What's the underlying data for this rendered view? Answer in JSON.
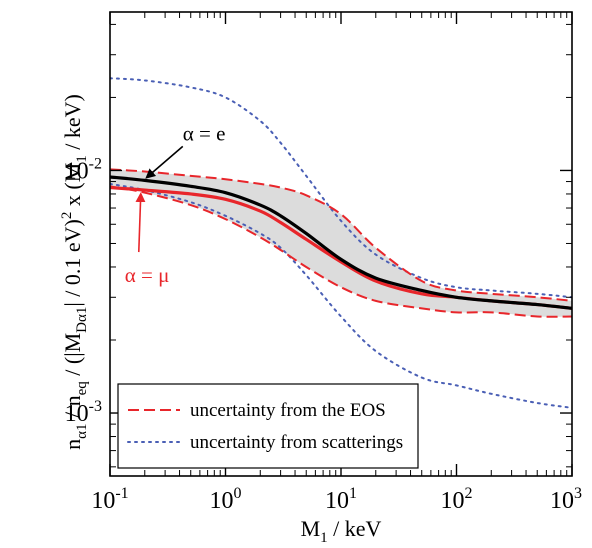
{
  "chart_data": {
    "type": "line",
    "x_scale": "log",
    "y_scale": "log",
    "xlim": [
      0.1,
      1000
    ],
    "ylim": [
      0.00055,
      0.045
    ],
    "xlabel": "M_1 / keV",
    "ylabel": "n_α1 / n_eq / (|M_Dα1| / 0.1 eV)^2 x (M_1 / keV)",
    "x_ticks": [
      {
        "value": 0.1,
        "base": "10",
        "exp": "-1"
      },
      {
        "value": 1,
        "base": "10",
        "exp": "0"
      },
      {
        "value": 10,
        "base": "10",
        "exp": "1"
      },
      {
        "value": 100,
        "base": "10",
        "exp": "2"
      },
      {
        "value": 1000,
        "base": "10",
        "exp": "3"
      }
    ],
    "y_ticks": [
      {
        "value": 0.001,
        "base": "10",
        "exp": "-3"
      },
      {
        "value": 0.01,
        "base": "10",
        "exp": "-2"
      }
    ],
    "x": [
      0.1,
      0.2,
      0.5,
      1,
      2,
      3,
      5,
      10,
      20,
      50,
      100,
      200,
      500,
      1000
    ],
    "series": [
      {
        "name": "α = e",
        "color": "#000000",
        "style": "solid",
        "values": [
          0.0094,
          0.0091,
          0.0086,
          0.0081,
          0.0072,
          0.0065,
          0.0055,
          0.0043,
          0.0036,
          0.0032,
          0.003,
          0.0029,
          0.0028,
          0.0027
        ]
      },
      {
        "name": "α = μ",
        "color": "#e8262b",
        "style": "solid",
        "values": [
          0.0085,
          0.0083,
          0.008,
          0.0076,
          0.0068,
          0.0061,
          0.0052,
          0.0042,
          0.0035,
          0.0031,
          0.003,
          0.0029,
          0.0028,
          0.0027
        ]
      },
      {
        "name": "EOS upper",
        "color": "#e8262b",
        "style": "dashed",
        "values": [
          0.0101,
          0.0099,
          0.0095,
          0.0092,
          0.0088,
          0.0085,
          0.0079,
          0.0066,
          0.0048,
          0.0035,
          0.0032,
          0.0031,
          0.003,
          0.0029
        ]
      },
      {
        "name": "EOS lower",
        "color": "#e8262b",
        "style": "dashed",
        "values": [
          0.0086,
          0.0081,
          0.0072,
          0.0063,
          0.0053,
          0.0047,
          0.004,
          0.0033,
          0.0029,
          0.0027,
          0.0026,
          0.0026,
          0.0025,
          0.0025
        ]
      },
      {
        "name": "scattering upper",
        "color": "#4a5fb5",
        "style": "dotted",
        "values": [
          0.024,
          0.0235,
          0.022,
          0.02,
          0.016,
          0.013,
          0.0095,
          0.0062,
          0.0045,
          0.0036,
          0.0033,
          0.0032,
          0.0031,
          0.003
        ]
      },
      {
        "name": "scattering lower",
        "color": "#4a5fb5",
        "style": "dotted",
        "values": [
          0.0088,
          0.0083,
          0.0074,
          0.0065,
          0.0055,
          0.0048,
          0.0037,
          0.0025,
          0.0018,
          0.0014,
          0.0013,
          0.0012,
          0.0011,
          0.00105
        ]
      }
    ],
    "band": {
      "upper": "EOS upper",
      "lower": "EOS lower",
      "color": "#dcdcdc"
    },
    "annotations": [
      {
        "text": "α = e",
        "color": "#000000",
        "target": [
          0.2,
          0.0091
        ]
      },
      {
        "text": "α = μ",
        "color": "#e8262b",
        "target": [
          0.2,
          0.0083
        ]
      }
    ],
    "legend": {
      "position": "bottom-left",
      "entries": [
        {
          "text": "uncertainty from the EOS",
          "color": "#e8262b",
          "style": "dashed"
        },
        {
          "text": "uncertainty from scatterings",
          "color": "#4a5fb5",
          "style": "dotted"
        }
      ]
    },
    "grid": false
  }
}
